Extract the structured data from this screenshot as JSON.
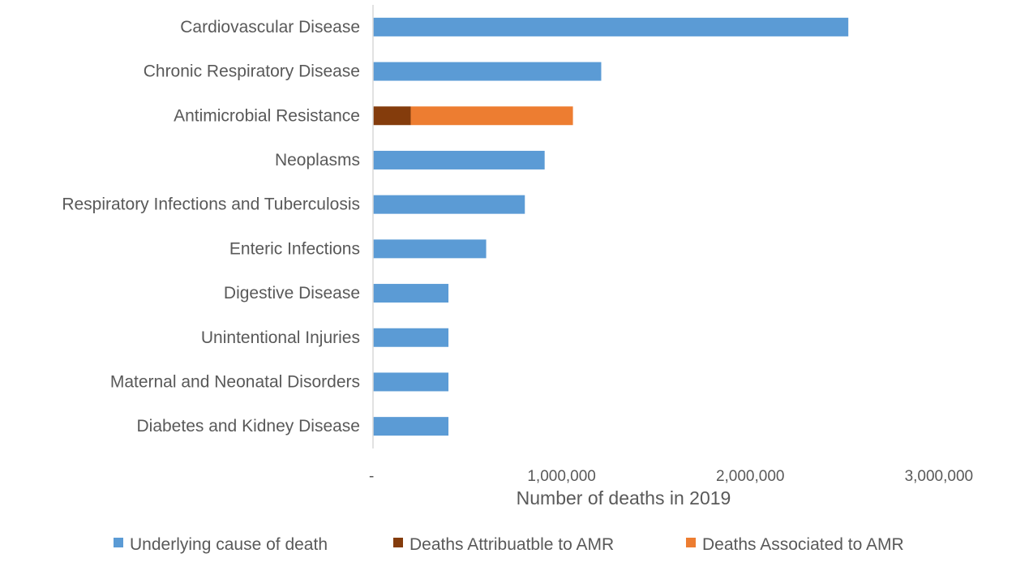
{
  "chart_data": {
    "type": "bar",
    "orientation": "horizontal",
    "stacked": true,
    "title": "",
    "xlabel": "Number of deaths in 2019",
    "ylabel": "",
    "xlim": [
      0,
      3250000
    ],
    "x_ticks": [
      {
        "value": 0,
        "label": "-"
      },
      {
        "value": 1000000,
        "label": "1,000,000"
      },
      {
        "value": 2000000,
        "label": "2,000,000"
      },
      {
        "value": 3000000,
        "label": "3,000,000"
      }
    ],
    "categories": [
      "Cardiovascular Disease",
      "Chronic Respiratory Disease",
      "Antimicrobial Resistance",
      "Neoplasms",
      "Respiratory Infections and Tuberculosis",
      "Enteric Infections",
      "Digestive Disease",
      "Unintentional Injuries",
      "Maternal and Neonatal Disorders",
      "Diabetes and Kidney Disease"
    ],
    "series": [
      {
        "name": "Underlying cause of death",
        "color": "#5B9BD5",
        "values": [
          2520000,
          1210000,
          0,
          910000,
          805000,
          600000,
          400000,
          400000,
          400000,
          400000
        ]
      },
      {
        "name": "Deaths Attribuatble to AMR",
        "color": "#843C0C",
        "values": [
          0,
          0,
          200000,
          0,
          0,
          0,
          0,
          0,
          0,
          0
        ]
      },
      {
        "name": "Deaths Associated to AMR",
        "color": "#ED7D31",
        "values": [
          0,
          0,
          860000,
          0,
          0,
          0,
          0,
          0,
          0,
          0
        ]
      }
    ],
    "grid": false,
    "legend_position": "bottom"
  },
  "colors": {
    "axis_line": "#D9D9D9",
    "text": "#595959"
  }
}
